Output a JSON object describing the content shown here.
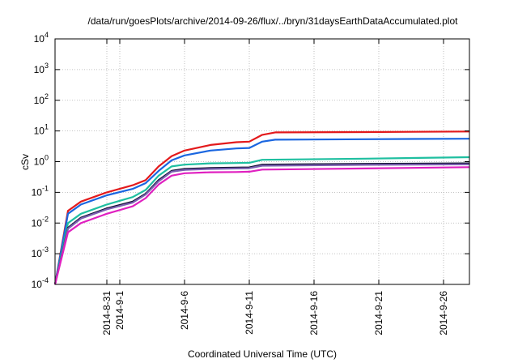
{
  "chart_data": {
    "type": "line",
    "title": "/data/run/goesPlots/archive/2014-09-26/flux/../bryn/31daysEarthDataAccumulated.plot",
    "xlabel": "Coordinated Universal Time (UTC)",
    "ylabel": "cSv",
    "yscale": "log",
    "ylim": [
      0.0001,
      10000
    ],
    "y_ticks": [
      {
        "value": 0.0001,
        "base": "10",
        "exp": "-4"
      },
      {
        "value": 0.001,
        "base": "10",
        "exp": "-3"
      },
      {
        "value": 0.01,
        "base": "10",
        "exp": "-2"
      },
      {
        "value": 0.1,
        "base": "10",
        "exp": "-1"
      },
      {
        "value": 1,
        "base": "10",
        "exp": "0"
      },
      {
        "value": 10,
        "base": "10",
        "exp": "1"
      },
      {
        "value": 100,
        "base": "10",
        "exp": "2"
      },
      {
        "value": 1000,
        "base": "10",
        "exp": "3"
      },
      {
        "value": 10000,
        "base": "10",
        "exp": "4"
      }
    ],
    "xlim": [
      "2014-08-27",
      "2014-09-28"
    ],
    "x_ticks": [
      "2014-8-31",
      "2014-9-1",
      "2014-9-6",
      "2014-9-11",
      "2014-9-16",
      "2014-9-21",
      "2014-9-26"
    ],
    "grid": true,
    "series": [
      {
        "color": "#e31a1c",
        "x": [
          "2014-08-27",
          "2014-08-28",
          "2014-08-29",
          "2014-08-31",
          "2014-09-02",
          "2014-09-03",
          "2014-09-04",
          "2014-09-05",
          "2014-09-06",
          "2014-09-08",
          "2014-09-10",
          "2014-09-11",
          "2014-09-12",
          "2014-09-13",
          "2014-09-20",
          "2014-09-28"
        ],
        "y": [
          0.0001,
          0.025,
          0.05,
          0.1,
          0.17,
          0.25,
          0.7,
          1.5,
          2.3,
          3.5,
          4.3,
          4.5,
          7.5,
          9.0,
          9.2,
          9.6
        ]
      },
      {
        "color": "#1a66e0",
        "x": [
          "2014-08-27",
          "2014-08-28",
          "2014-08-29",
          "2014-08-31",
          "2014-09-02",
          "2014-09-03",
          "2014-09-04",
          "2014-09-05",
          "2014-09-06",
          "2014-09-08",
          "2014-09-10",
          "2014-09-11",
          "2014-09-12",
          "2014-09-13",
          "2014-09-20",
          "2014-09-28"
        ],
        "y": [
          0.0001,
          0.02,
          0.04,
          0.08,
          0.13,
          0.2,
          0.5,
          1.1,
          1.6,
          2.3,
          2.7,
          2.8,
          4.5,
          5.2,
          5.4,
          5.6
        ]
      },
      {
        "color": "#1fbfa0",
        "x": [
          "2014-08-27",
          "2014-08-28",
          "2014-08-29",
          "2014-08-31",
          "2014-09-02",
          "2014-09-03",
          "2014-09-04",
          "2014-09-05",
          "2014-09-06",
          "2014-09-08",
          "2014-09-10",
          "2014-09-11",
          "2014-09-12",
          "2014-09-20",
          "2014-09-28"
        ],
        "y": [
          0.0001,
          0.01,
          0.02,
          0.04,
          0.07,
          0.12,
          0.35,
          0.7,
          0.8,
          0.88,
          0.9,
          0.92,
          1.15,
          1.25,
          1.4
        ]
      },
      {
        "color": "#101030",
        "x": [
          "2014-08-27",
          "2014-08-28",
          "2014-08-29",
          "2014-08-31",
          "2014-09-02",
          "2014-09-03",
          "2014-09-04",
          "2014-09-05",
          "2014-09-06",
          "2014-09-08",
          "2014-09-10",
          "2014-09-11",
          "2014-09-12",
          "2014-09-20",
          "2014-09-28"
        ],
        "y": [
          0.0001,
          0.007,
          0.015,
          0.03,
          0.05,
          0.09,
          0.25,
          0.5,
          0.58,
          0.62,
          0.64,
          0.65,
          0.8,
          0.85,
          0.88
        ]
      },
      {
        "color": "#7a5fb0",
        "x": [
          "2014-08-27",
          "2014-08-28",
          "2014-08-29",
          "2014-08-31",
          "2014-09-02",
          "2014-09-03",
          "2014-09-04",
          "2014-09-05",
          "2014-09-06",
          "2014-09-08",
          "2014-09-10",
          "2014-09-11",
          "2014-09-12",
          "2014-09-20",
          "2014-09-28"
        ],
        "y": [
          0.0001,
          0.0065,
          0.014,
          0.028,
          0.046,
          0.085,
          0.23,
          0.47,
          0.54,
          0.58,
          0.6,
          0.61,
          0.74,
          0.79,
          0.82
        ]
      },
      {
        "color": "#e020c0",
        "x": [
          "2014-08-27",
          "2014-08-28",
          "2014-08-29",
          "2014-08-31",
          "2014-09-02",
          "2014-09-03",
          "2014-09-04",
          "2014-09-05",
          "2014-09-06",
          "2014-09-08",
          "2014-09-10",
          "2014-09-11",
          "2014-09-12",
          "2014-09-20",
          "2014-09-28"
        ],
        "y": [
          0.0001,
          0.005,
          0.01,
          0.02,
          0.035,
          0.065,
          0.18,
          0.35,
          0.42,
          0.45,
          0.46,
          0.47,
          0.55,
          0.6,
          0.66
        ]
      }
    ]
  }
}
